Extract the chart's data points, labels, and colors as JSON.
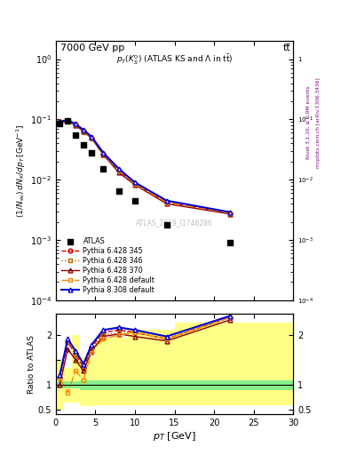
{
  "title_top": "7000 GeV pp",
  "title_top_right": "tt̅",
  "main_title": "p_{T}(K^{0}_{S}) (ATLAS KS and \\Lambda in t\\bar{t})",
  "watermark": "ATLAS_2019_I1746286",
  "rivet_label": "Rivet 3.1.10, ≥ 2.9M events",
  "mcplots_label": "mcplots.cern.ch [arXiv:1306.3436]",
  "ylabel_main": "(1/N_{ev}) dN_{K}/dp_{T} [GeV^{-1}]",
  "ylabel_ratio": "Ratio to ATLAS",
  "xlabel": "p_{T} [GeV]",
  "xlim": [
    0,
    30
  ],
  "ylim_main": [
    0.0001,
    2.0
  ],
  "ylim_ratio": [
    0.42,
    2.42
  ],
  "atlas_x": [
    0.5,
    1.5,
    2.5,
    3.5,
    4.5,
    6.0,
    8.0,
    10.0,
    14.0,
    22.0
  ],
  "atlas_y": [
    0.085,
    0.095,
    0.055,
    0.038,
    0.028,
    0.015,
    0.0065,
    0.0045,
    0.0018,
    0.0009
  ],
  "py_x": [
    0.5,
    1.5,
    2.5,
    3.5,
    4.5,
    6.0,
    8.0,
    10.0,
    14.0,
    22.0
  ],
  "py345_y": [
    0.09,
    0.095,
    0.082,
    0.065,
    0.05,
    0.027,
    0.014,
    0.0085,
    0.0042,
    0.0028
  ],
  "py346_y": [
    0.09,
    0.095,
    0.082,
    0.062,
    0.05,
    0.027,
    0.014,
    0.0085,
    0.0042,
    0.0028
  ],
  "py370_y": [
    0.088,
    0.093,
    0.08,
    0.063,
    0.049,
    0.026,
    0.013,
    0.0082,
    0.004,
    0.0027
  ],
  "pydef_y": [
    0.09,
    0.095,
    0.082,
    0.065,
    0.05,
    0.027,
    0.014,
    0.0085,
    0.0042,
    0.0028
  ],
  "py8_y": [
    0.092,
    0.098,
    0.084,
    0.067,
    0.052,
    0.028,
    0.015,
    0.009,
    0.0045,
    0.0029
  ],
  "ratio_x": [
    0.5,
    1.5,
    2.5,
    3.5,
    4.5,
    6.0,
    8.0,
    10.0,
    14.0,
    22.0
  ],
  "ratio_345": [
    1.15,
    1.85,
    1.62,
    1.35,
    1.75,
    2.05,
    2.1,
    2.05,
    1.92,
    2.35
  ],
  "ratio_346": [
    1.15,
    1.85,
    1.6,
    1.28,
    1.7,
    2.0,
    2.05,
    2.05,
    1.92,
    2.35
  ],
  "ratio_370": [
    1.0,
    1.72,
    1.5,
    1.28,
    1.68,
    1.97,
    2.02,
    1.97,
    1.88,
    2.3
  ],
  "ratio_pydef": [
    1.15,
    0.85,
    1.28,
    1.1,
    1.65,
    1.92,
    2.0,
    2.05,
    1.92,
    2.35
  ],
  "ratio_py8": [
    1.2,
    1.92,
    1.68,
    1.42,
    1.8,
    2.1,
    2.15,
    2.1,
    1.97,
    2.38
  ],
  "band_edges": [
    0.0,
    1.0,
    2.0,
    3.0,
    5.0,
    9.0,
    15.0,
    30.0
  ],
  "green_low": [
    0.93,
    0.93,
    0.93,
    0.9,
    0.9,
    0.9,
    0.9,
    0.9
  ],
  "green_high": [
    1.07,
    1.07,
    1.07,
    1.1,
    1.1,
    1.1,
    1.1,
    1.1
  ],
  "yellow_low": [
    0.5,
    0.65,
    0.65,
    0.58,
    0.6,
    0.6,
    0.6,
    0.6
  ],
  "yellow_high": [
    1.5,
    1.35,
    2.0,
    1.55,
    1.95,
    2.1,
    2.25,
    2.25
  ],
  "color_345": "#cc0000",
  "color_346": "#bb6600",
  "color_370": "#880000",
  "color_pydef": "#ff8800",
  "color_py8": "#0000cc"
}
